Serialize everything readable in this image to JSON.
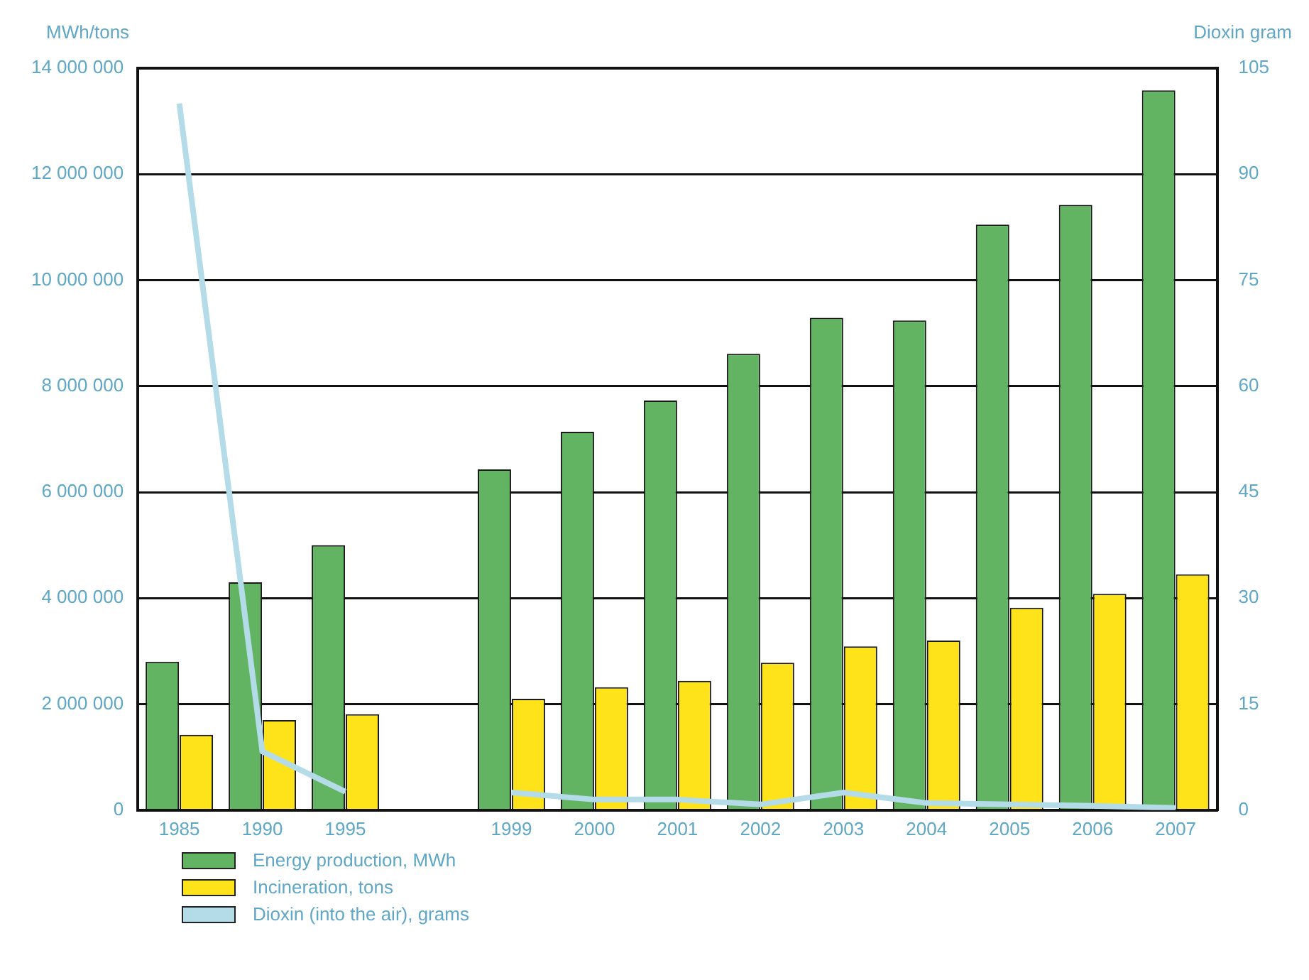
{
  "chart_data": {
    "type": "bar",
    "ylabel": "MWh/tons",
    "y2label": "Dioxin gram",
    "categories": [
      "1985",
      "1990",
      "1995",
      null,
      "1999",
      "2000",
      "2001",
      "2002",
      "2003",
      "2004",
      "2005",
      "2006",
      "2007"
    ],
    "series": [
      {
        "name": "Energy production, MWh",
        "color": "#62b462",
        "values": [
          2800000,
          4300000,
          5000000,
          null,
          6430000,
          7140000,
          7730000,
          8610000,
          9290000,
          9240000,
          11050000,
          11420000,
          13580000
        ]
      },
      {
        "name": "Incineration, tons",
        "color": "#ffe31a",
        "values": [
          1420000,
          1700000,
          1810000,
          null,
          2100000,
          2320000,
          2440000,
          2780000,
          3090000,
          3200000,
          3820000,
          4080000,
          4450000
        ]
      },
      {
        "name": "Dioxin (into the air), grams",
        "type": "line",
        "axis": "y2",
        "color": "#b4dbe8",
        "values": [
          100,
          8.3,
          2.6,
          null,
          2.5,
          1.5,
          1.5,
          0.8,
          2.5,
          1,
          0.8,
          0.6,
          0.3
        ]
      }
    ],
    "ylim": [
      0,
      14000000
    ],
    "yticks": [
      0,
      {
        "value": 2000000,
        "label": "2 000 000"
      },
      {
        "value": 4000000,
        "label": "4 000 000"
      },
      {
        "value": 6000000,
        "label": "6 000 000"
      },
      {
        "value": 8000000,
        "label": "8 000 000"
      },
      {
        "value": 10000000,
        "label": "10 000 000"
      },
      {
        "value": 12000000,
        "label": "12 000 000"
      },
      {
        "value": 14000000,
        "label": "14 000 000"
      }
    ],
    "y2lim": [
      0,
      105
    ],
    "y2ticks": [
      0,
      15,
      30,
      45,
      60,
      75,
      90,
      105
    ],
    "grid": "y",
    "legend": "bottom left",
    "marker": "none",
    "line_style": "solid"
  }
}
